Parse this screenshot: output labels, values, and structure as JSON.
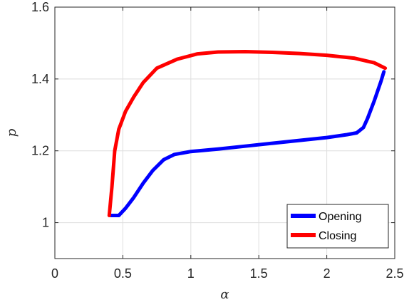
{
  "chart_data": {
    "type": "line",
    "xlabel": "α",
    "ylabel": "p",
    "xlim": [
      0,
      2.5
    ],
    "ylim": [
      0.9,
      1.6
    ],
    "xticks": [
      "0",
      "0.5",
      "1",
      "1.5",
      "2",
      "2.5"
    ],
    "yticks": [
      "1",
      "1.2",
      "1.4",
      "1.6"
    ],
    "grid": true,
    "legend_position": "bottom-right",
    "series": [
      {
        "name": "Opening",
        "color": "#0000ff",
        "points": [
          [
            0.41,
            1.02
          ],
          [
            0.47,
            1.02
          ],
          [
            0.52,
            1.04
          ],
          [
            0.58,
            1.07
          ],
          [
            0.65,
            1.11
          ],
          [
            0.72,
            1.145
          ],
          [
            0.8,
            1.175
          ],
          [
            0.88,
            1.19
          ],
          [
            1.0,
            1.198
          ],
          [
            1.2,
            1.205
          ],
          [
            1.4,
            1.213
          ],
          [
            1.6,
            1.221
          ],
          [
            1.8,
            1.229
          ],
          [
            2.0,
            1.237
          ],
          [
            2.15,
            1.245
          ],
          [
            2.22,
            1.25
          ],
          [
            2.27,
            1.265
          ],
          [
            2.3,
            1.29
          ],
          [
            2.35,
            1.34
          ],
          [
            2.4,
            1.395
          ],
          [
            2.42,
            1.42
          ]
        ]
      },
      {
        "name": "Closing",
        "color": "#ff0000",
        "points": [
          [
            2.43,
            1.43
          ],
          [
            2.35,
            1.445
          ],
          [
            2.2,
            1.458
          ],
          [
            2.0,
            1.466
          ],
          [
            1.8,
            1.471
          ],
          [
            1.6,
            1.474
          ],
          [
            1.4,
            1.476
          ],
          [
            1.2,
            1.475
          ],
          [
            1.05,
            1.47
          ],
          [
            0.9,
            1.455
          ],
          [
            0.75,
            1.43
          ],
          [
            0.65,
            1.39
          ],
          [
            0.58,
            1.35
          ],
          [
            0.52,
            1.31
          ],
          [
            0.47,
            1.26
          ],
          [
            0.44,
            1.2
          ],
          [
            0.42,
            1.1
          ],
          [
            0.4,
            1.02
          ]
        ]
      }
    ]
  }
}
